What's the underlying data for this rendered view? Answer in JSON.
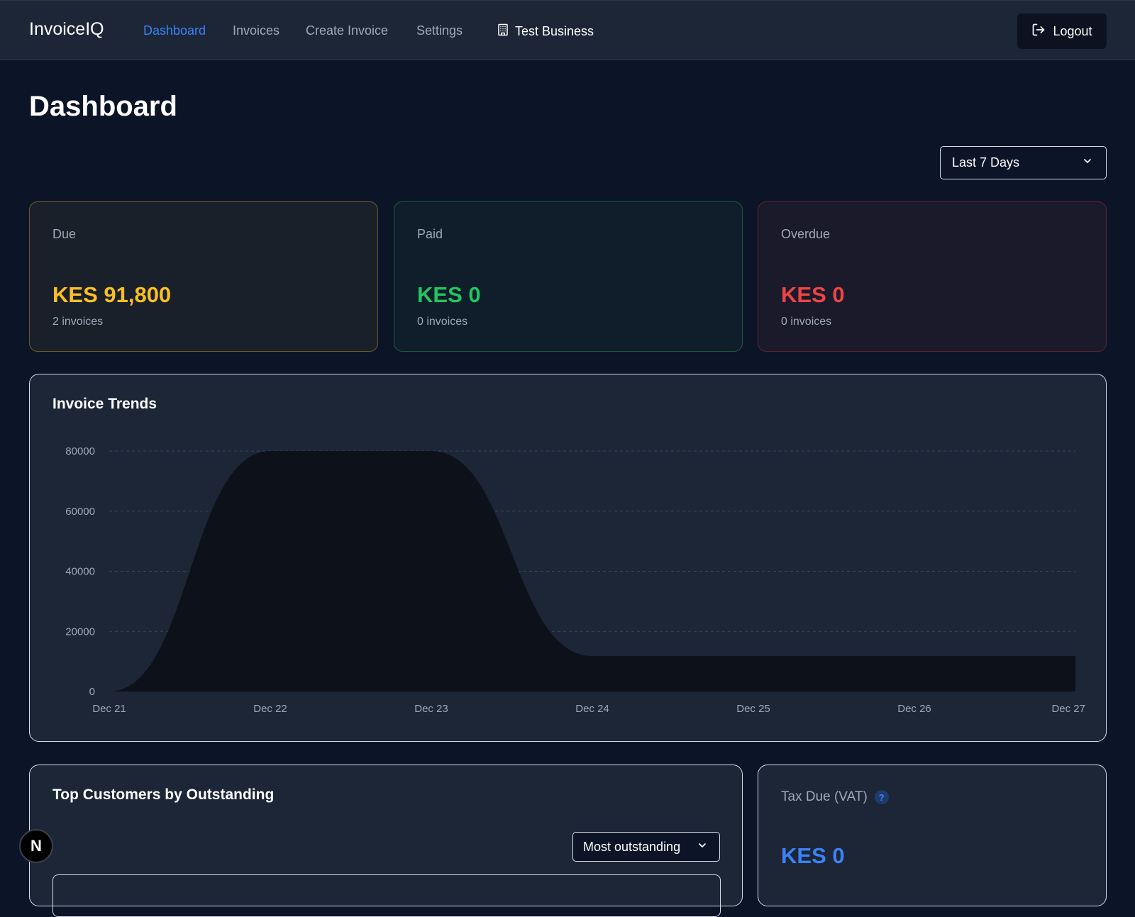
{
  "app": {
    "brand": "InvoiceIQ"
  },
  "nav": {
    "links": [
      {
        "label": "Dashboard",
        "active": true
      },
      {
        "label": "Invoices"
      },
      {
        "label": "Create Invoice"
      },
      {
        "label": "Settings"
      }
    ],
    "business_name": "Test Business",
    "logout_label": "Logout"
  },
  "page": {
    "title": "Dashboard"
  },
  "filters": {
    "date_range": "Last 7 Days"
  },
  "stats": {
    "due": {
      "label": "Due",
      "amount": "KES 91,800",
      "count": "2 invoices"
    },
    "paid": {
      "label": "Paid",
      "amount": "KES 0",
      "count": "0 invoices"
    },
    "overdue": {
      "label": "Overdue",
      "amount": "KES 0",
      "count": "0 invoices"
    }
  },
  "trends": {
    "title": "Invoice Trends"
  },
  "chart_data": {
    "type": "area",
    "title": "Invoice Trends",
    "x": [
      "Dec 21",
      "Dec 22",
      "Dec 23",
      "Dec 24",
      "Dec 25",
      "Dec 26",
      "Dec 27"
    ],
    "series": [
      {
        "values": [
          0,
          80000,
          80000,
          11800,
          11800,
          11800,
          11800
        ]
      }
    ],
    "yticks": [
      0,
      20000,
      40000,
      60000,
      80000
    ],
    "ylim": [
      0,
      80000
    ],
    "grid": true,
    "fill_color": "#0d1119"
  },
  "customers": {
    "title": "Top Customers by Outstanding",
    "sort_label": "Most outstanding"
  },
  "tax": {
    "label": "Tax Due (VAT)",
    "help": "?",
    "amount": "KES 0"
  },
  "dev_badge": "N",
  "colors": {
    "accent": "#3b82f6",
    "due": "#fbbf24",
    "paid": "#22c55e",
    "overdue": "#ef4444"
  }
}
